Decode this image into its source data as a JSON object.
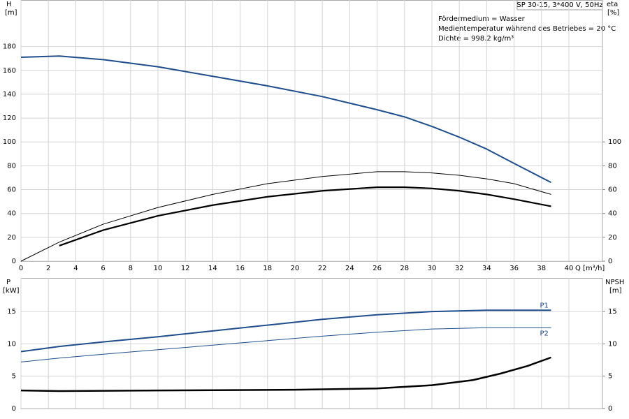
{
  "chart_data": [
    {
      "type": "line",
      "title": "SP 30-15, 3*400 V, 50Hz",
      "annotations": [
        "Fördermedium = Wasser",
        "Medientemperatur während des Betriebes = 20 °C",
        "Dichte = 998.2 kg/m³"
      ],
      "ylabel": "H",
      "yunit": "[m]",
      "y2label": "eta",
      "y2unit": "[%]",
      "xlabel": "Q [m³/h]",
      "xlim": [
        0,
        42.45
      ],
      "xticks": [
        0,
        2,
        4,
        6,
        8,
        10,
        12,
        14,
        16,
        18,
        20,
        22,
        24,
        26,
        28,
        30,
        32,
        34,
        36,
        38,
        40
      ],
      "ylim": [
        0,
        219
      ],
      "yticks": [
        0,
        20,
        40,
        60,
        80,
        100,
        120,
        140,
        160,
        180
      ],
      "y2lim": [
        0,
        219
      ],
      "y2ticks": [
        0,
        20,
        40,
        60,
        80,
        100
      ],
      "grid": true,
      "series": [
        {
          "color": "#1f4e8c",
          "width": 2,
          "x": [
            0,
            2.8,
            6,
            10,
            14,
            18,
            22,
            26,
            28,
            30,
            32,
            34,
            36,
            38.7
          ],
          "values": [
            171,
            172,
            169,
            163,
            155,
            147,
            138,
            127,
            121,
            113,
            104,
            94,
            82,
            66
          ]
        },
        {
          "color": "#000000",
          "width": 1,
          "axis": "y2",
          "x": [
            0,
            2.8,
            6,
            10,
            14,
            18,
            22,
            26,
            28,
            30,
            32,
            34,
            36,
            38.7
          ],
          "values": [
            0,
            16,
            31,
            45,
            56,
            65,
            71,
            75,
            75,
            74,
            72,
            69,
            65,
            56
          ]
        },
        {
          "color": "#000000",
          "width": 2.2,
          "axis": "y2",
          "x": [
            2.8,
            6,
            10,
            14,
            18,
            22,
            26,
            28,
            30,
            32,
            34,
            36,
            38.7
          ],
          "values": [
            13,
            26,
            38,
            47,
            54,
            59,
            62,
            62,
            61,
            59,
            56,
            52,
            46
          ]
        }
      ]
    },
    {
      "type": "line",
      "ylabel": "P",
      "yunit": "[kW]",
      "y2label": "NPSH",
      "y2unit": "[m]",
      "xlim": [
        0,
        42.45
      ],
      "ylim": [
        0,
        20.2
      ],
      "yticks": [
        0,
        5,
        10,
        15
      ],
      "y2lim": [
        0,
        20.2
      ],
      "y2ticks": [
        0,
        5,
        10,
        15
      ],
      "grid": true,
      "series": [
        {
          "name": "P1",
          "color": "#1f4e8c",
          "width": 2,
          "x": [
            0,
            2.8,
            6,
            10,
            14,
            18,
            22,
            26,
            30,
            34,
            38.7
          ],
          "values": [
            8.8,
            9.6,
            10.3,
            11.1,
            12.0,
            12.9,
            13.8,
            14.5,
            15.0,
            15.2,
            15.2
          ]
        },
        {
          "name": "P2",
          "color": "#1f4e8c",
          "width": 1,
          "x": [
            0,
            2.8,
            6,
            10,
            14,
            18,
            22,
            26,
            30,
            34,
            38.7
          ],
          "values": [
            7.2,
            7.8,
            8.4,
            9.1,
            9.8,
            10.5,
            11.2,
            11.8,
            12.3,
            12.5,
            12.5
          ]
        },
        {
          "color": "#000000",
          "width": 2.5,
          "axis": "y2",
          "x": [
            0,
            2.8,
            10,
            20,
            26,
            30,
            33,
            35,
            37,
            38.7
          ],
          "values": [
            2.8,
            2.7,
            2.8,
            2.9,
            3.1,
            3.6,
            4.4,
            5.4,
            6.6,
            7.9
          ]
        }
      ]
    }
  ]
}
